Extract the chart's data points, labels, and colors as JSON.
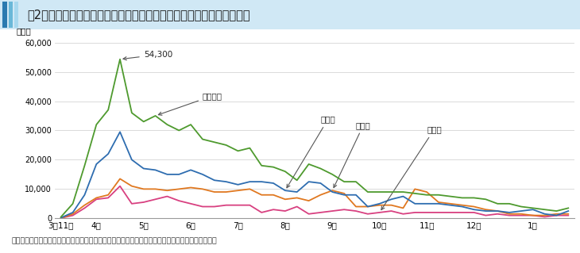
{
  "title": "図2　東北３県でのボランティア活動者数（１週間ごとの概数）の推移",
  "ylabel": "人／週",
  "xlabel_ticks": [
    "3月11日",
    "4月",
    "5月",
    "6月",
    "7月",
    "8月",
    "9月",
    "10月",
    "11月",
    "12月",
    "1月"
  ],
  "ylim": [
    0,
    62000
  ],
  "yticks": [
    0,
    10000,
    20000,
    30000,
    40000,
    50000,
    60000
  ],
  "ytick_labels": [
    "0",
    "10,000",
    "20,000",
    "30,000",
    "40,000",
    "50,000",
    "60,000"
  ],
  "footer": "資料：全国社会福素協議会、全国ボランティア、市民活動振興センター資料を基に農林水産省で作成",
  "annotation_peak": "54,300",
  "header_bar_colors": [
    "#2a7ab0",
    "#6ab8d8",
    "#a8d8ee"
  ],
  "header_bg": "#d0e8f5",
  "tohoku3_color": "#4e9a2e",
  "miyagi_color": "#2e6db0",
  "fukushima_color": "#e07820",
  "iwate_color": "#d84080",
  "label_tohoku3": "東北３県",
  "label_miyagi": "宮城県",
  "label_fukushima": "福島県",
  "label_iwate": "岩手県",
  "series": {
    "tohoku3": [
      500,
      5000,
      18000,
      32000,
      37000,
      54300,
      36000,
      33000,
      35000,
      32000,
      30000,
      32000,
      27000,
      26000,
      25000,
      23000,
      24000,
      18000,
      17500,
      16000,
      13000,
      18500,
      17000,
      15000,
      12500,
      12500,
      9000,
      9000,
      9000,
      9000,
      8500,
      8000,
      8000,
      7500,
      7000,
      7000,
      6500,
      5000,
      5000,
      4000,
      3500,
      3000,
      2500,
      3500
    ],
    "miyagi": [
      200,
      2000,
      8000,
      18500,
      22000,
      29500,
      20000,
      17000,
      16500,
      15000,
      15000,
      16500,
      15000,
      13000,
      12500,
      11500,
      12500,
      12500,
      12000,
      9500,
      9000,
      12500,
      12000,
      9000,
      8000,
      8000,
      4000,
      5000,
      6500,
      7500,
      5000,
      5000,
      5000,
      4500,
      4000,
      3000,
      2500,
      2500,
      2000,
      2500,
      3000,
      1500,
      1000,
      2500
    ],
    "fukushima": [
      100,
      1500,
      4500,
      7000,
      8000,
      13500,
      11000,
      10000,
      10000,
      9500,
      10000,
      10500,
      10000,
      9000,
      9000,
      9500,
      10000,
      8000,
      8000,
      6500,
      7000,
      6000,
      8000,
      9500,
      8500,
      4000,
      4000,
      4500,
      4500,
      3500,
      10000,
      9000,
      5500,
      5000,
      4500,
      4000,
      3000,
      2500,
      1500,
      1500,
      1000,
      1000,
      1500,
      1500
    ],
    "iwate": [
      100,
      1000,
      3500,
      6500,
      7000,
      11000,
      5000,
      5500,
      6500,
      7500,
      6000,
      5000,
      4000,
      4000,
      4500,
      4500,
      4500,
      2000,
      3000,
      2500,
      4000,
      1500,
      2000,
      2500,
      3000,
      2500,
      1500,
      2000,
      2500,
      1500,
      2000,
      2000,
      2000,
      2000,
      2000,
      2000,
      1000,
      1500,
      1000,
      1000,
      1000,
      500,
      1000,
      1000
    ]
  },
  "n_points": 44,
  "xtick_positions": [
    0,
    3,
    7,
    11,
    15,
    19,
    23,
    27,
    31,
    35,
    40
  ]
}
